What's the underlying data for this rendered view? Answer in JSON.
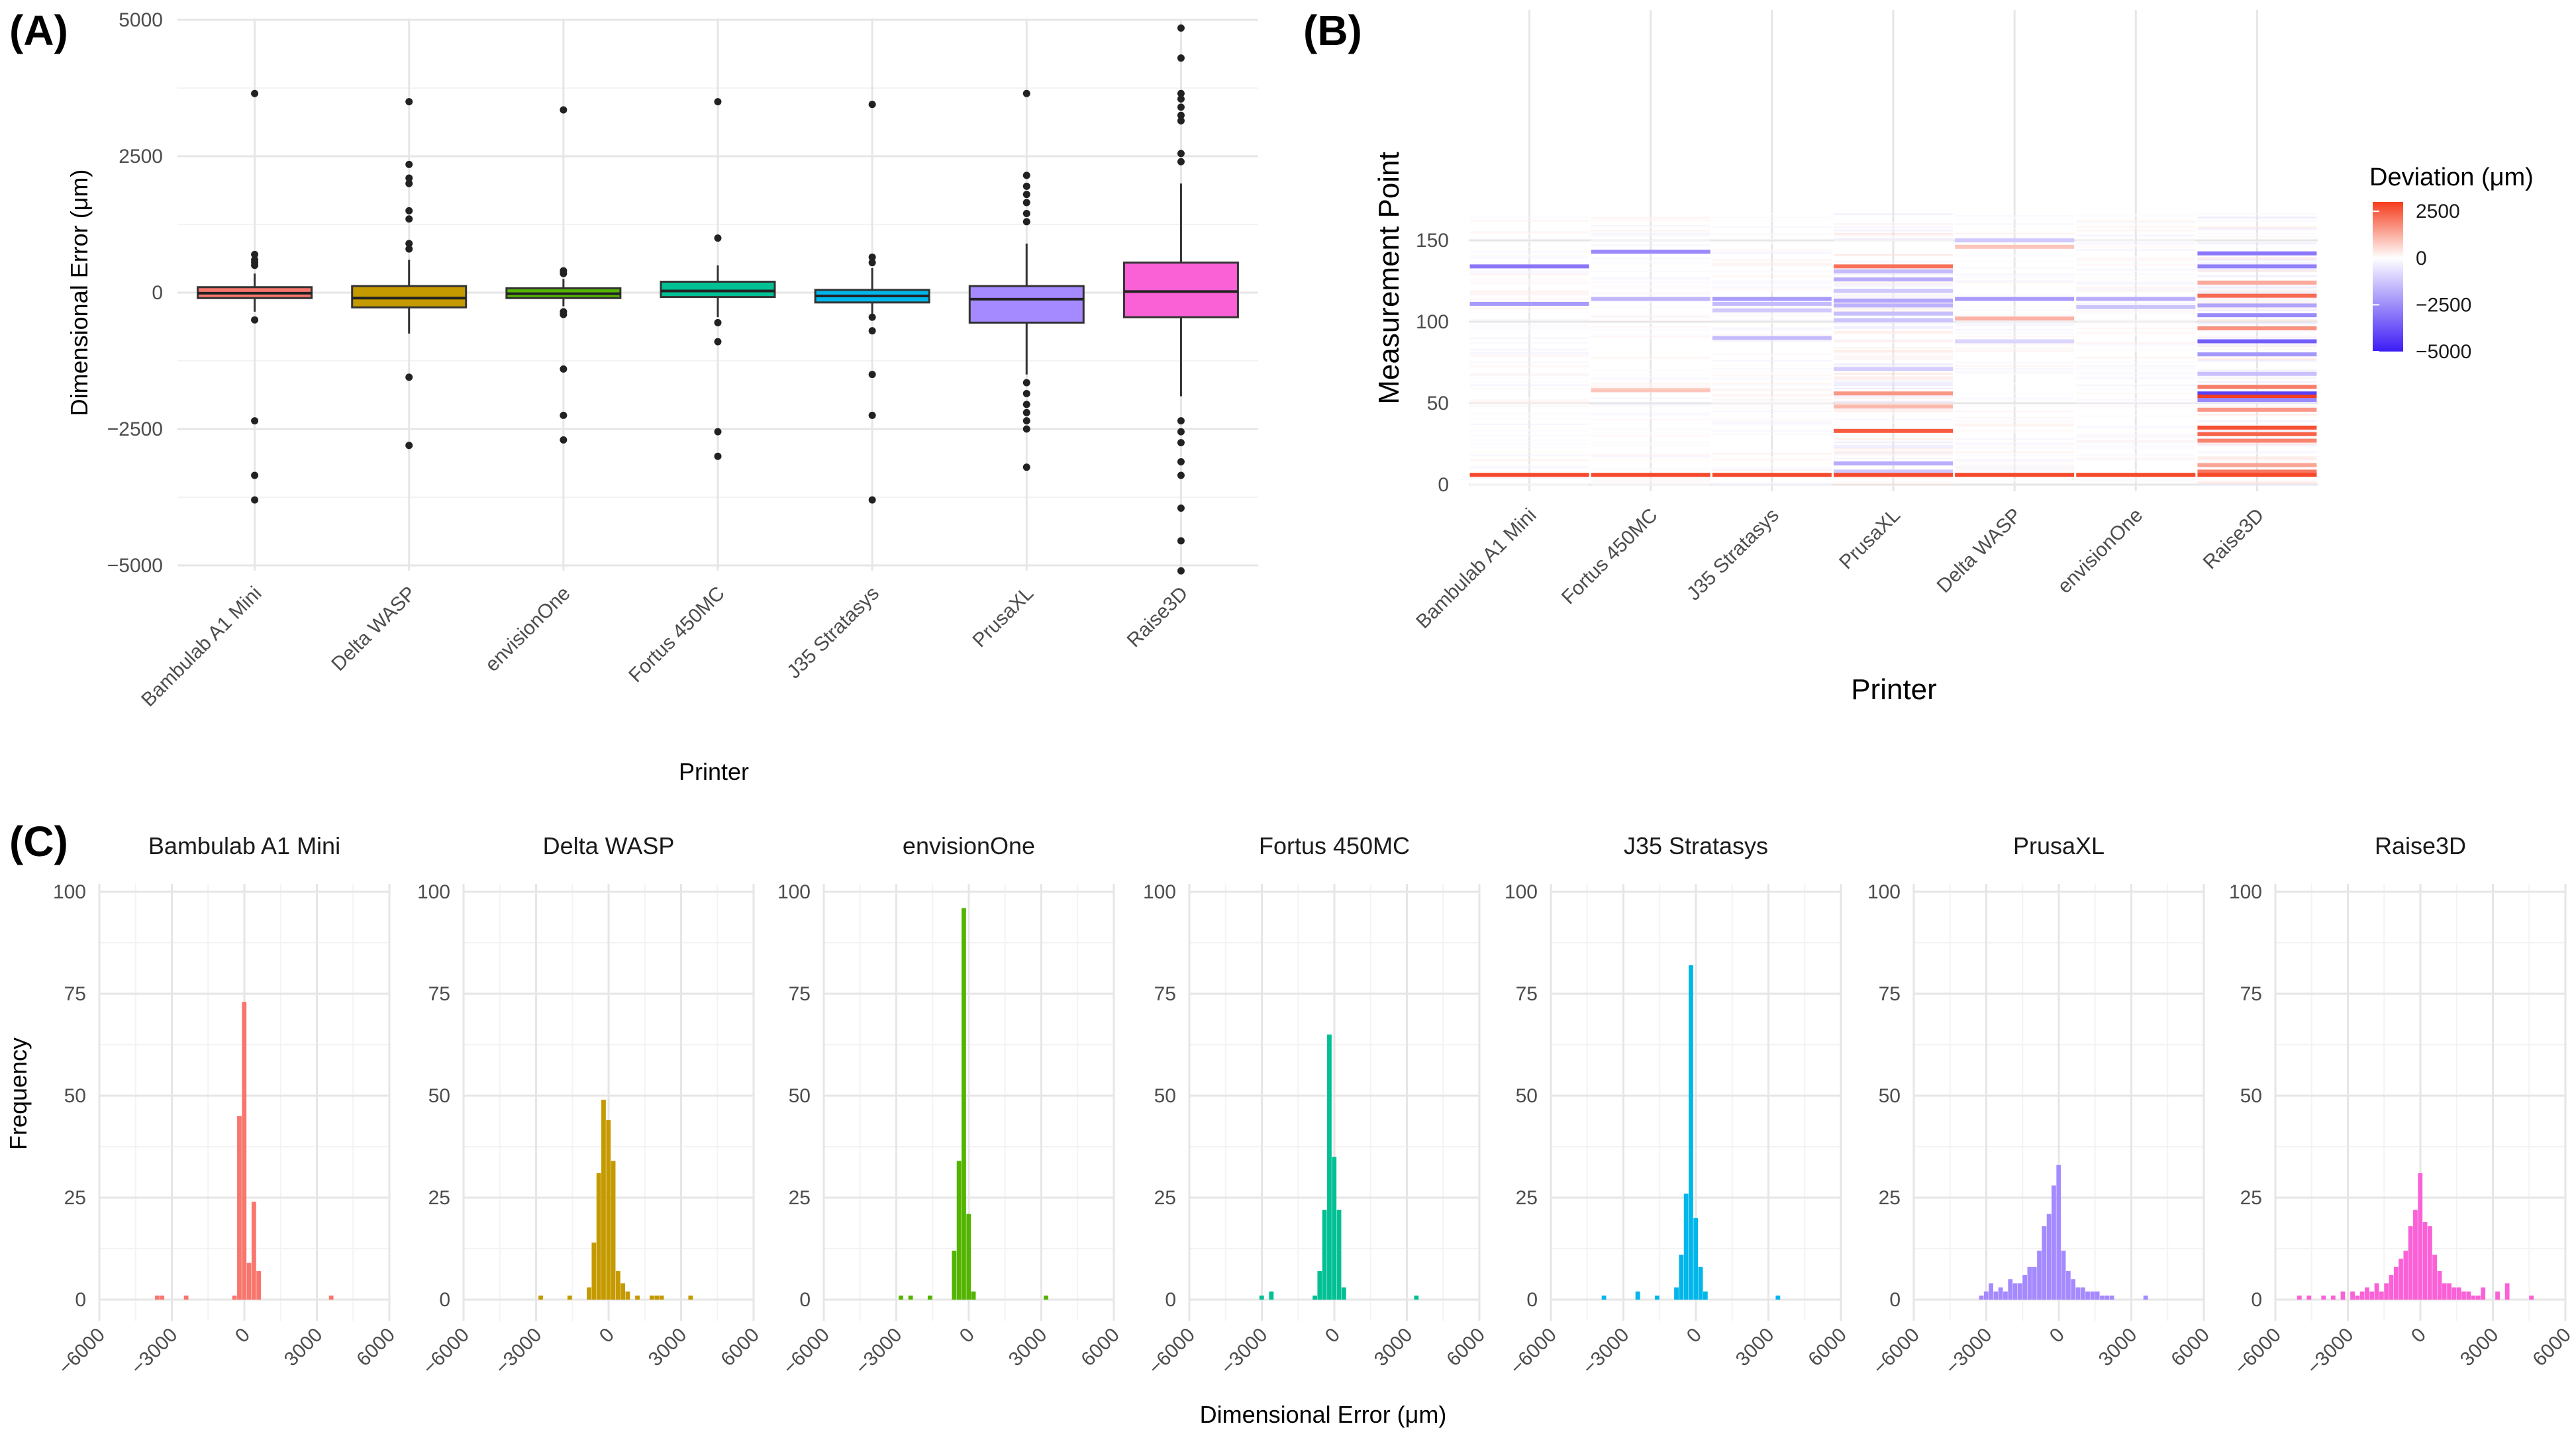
{
  "chart_data": [
    {
      "id": "A",
      "type": "boxplot",
      "panel_label": "(A)",
      "xlabel": "Printer",
      "ylabel": "Dimensional Error (μm)",
      "ylim": [
        -5000,
        5000
      ],
      "yticks": [
        5000,
        2500,
        0,
        -2500,
        -5000
      ],
      "categories": [
        "Bambulab A1 Mini",
        "Delta WASP",
        "envisionOne",
        "Fortus 450MC",
        "J35 Stratasys",
        "PrusaXL",
        "Raise3D"
      ],
      "colors": [
        "#F8766D",
        "#C49A00",
        "#53B400",
        "#00C094",
        "#00B6EB",
        "#A58AFF",
        "#FB61D7"
      ],
      "boxes": [
        {
          "q1": -100,
          "median": -10,
          "q3": 100,
          "whisker_low": -350,
          "whisker_high": 350,
          "outliers": [
            3650,
            700,
            600,
            550,
            500,
            -500,
            -2350,
            -3350,
            -3800
          ]
        },
        {
          "q1": -270,
          "median": -100,
          "q3": 120,
          "whisker_low": -750,
          "whisker_high": 600,
          "outliers": [
            3500,
            2350,
            2100,
            2000,
            1500,
            1350,
            900,
            800,
            -1550,
            -2800
          ]
        },
        {
          "q1": -100,
          "median": -20,
          "q3": 80,
          "whisker_low": -250,
          "whisker_high": 250,
          "outliers": [
            3350,
            400,
            350,
            -350,
            -400,
            -1400,
            -2250,
            -2700
          ]
        },
        {
          "q1": -80,
          "median": 30,
          "q3": 200,
          "whisker_low": -450,
          "whisker_high": 500,
          "outliers": [
            3500,
            1000,
            -550,
            -900,
            -2550,
            -3000
          ]
        },
        {
          "q1": -180,
          "median": -60,
          "q3": 50,
          "whisker_low": -400,
          "whisker_high": 450,
          "outliers": [
            3450,
            650,
            550,
            -450,
            -700,
            -1500,
            -2250,
            -3800
          ]
        },
        {
          "q1": -550,
          "median": -120,
          "q3": 120,
          "whisker_low": -1500,
          "whisker_high": 900,
          "outliers": [
            3650,
            2150,
            1950,
            1800,
            1650,
            1450,
            1300,
            -1650,
            -1850,
            -2050,
            -2200,
            -2350,
            -2500,
            -3200
          ]
        },
        {
          "q1": -450,
          "median": 20,
          "q3": 550,
          "whisker_low": -1900,
          "whisker_high": 2000,
          "outliers": [
            4850,
            4300,
            3650,
            3550,
            3400,
            3250,
            3150,
            2550,
            2400,
            -2350,
            -2550,
            -2750,
            -3100,
            -3350,
            -3950,
            -4550,
            -5100
          ]
        }
      ]
    },
    {
      "id": "B",
      "type": "heatmap",
      "panel_label": "(B)",
      "xlabel": "Printer",
      "ylabel": "Measurement Point",
      "categories": [
        "Bambulab A1 Mini",
        "Fortus 450MC",
        "J35 Stratasys",
        "PrusaXL",
        "Delta WASP",
        "envisionOne",
        "Raise3D"
      ],
      "ylim": [
        0,
        170
      ],
      "yticks": [
        0,
        50,
        100,
        150
      ],
      "legend": {
        "title": "Deviation (μm)",
        "ticks": [
          2500,
          0,
          -2500,
          -5000
        ],
        "range": [
          -5000,
          3000
        ],
        "position": "right"
      },
      "color_scale": {
        "low": "#3C1CF5",
        "mid": "#FFFFFF",
        "high": "#F53C1C"
      },
      "strong_lines": [
        {
          "col": 0,
          "point": 134,
          "value": -3000
        },
        {
          "col": 0,
          "point": 111,
          "value": -2200
        },
        {
          "col": 0,
          "point": 6,
          "value": 2800
        },
        {
          "col": 1,
          "point": 143,
          "value": -2600
        },
        {
          "col": 1,
          "point": 114,
          "value": -1600
        },
        {
          "col": 1,
          "point": 6,
          "value": 2800
        },
        {
          "col": 1,
          "point": 58,
          "value": 900
        },
        {
          "col": 2,
          "point": 114,
          "value": -2200
        },
        {
          "col": 2,
          "point": 111,
          "value": -1500
        },
        {
          "col": 2,
          "point": 107,
          "value": -1200
        },
        {
          "col": 2,
          "point": 90,
          "value": -1500
        },
        {
          "col": 2,
          "point": 6,
          "value": 2800
        },
        {
          "col": 3,
          "point": 134,
          "value": 2200
        },
        {
          "col": 3,
          "point": 131,
          "value": -1500
        },
        {
          "col": 3,
          "point": 126,
          "value": -1800
        },
        {
          "col": 3,
          "point": 119,
          "value": -1200
        },
        {
          "col": 3,
          "point": 113,
          "value": -2000
        },
        {
          "col": 3,
          "point": 110,
          "value": -1700
        },
        {
          "col": 3,
          "point": 105,
          "value": -1400
        },
        {
          "col": 3,
          "point": 101,
          "value": -1300
        },
        {
          "col": 3,
          "point": 71,
          "value": -1100
        },
        {
          "col": 3,
          "point": 56,
          "value": 1600
        },
        {
          "col": 3,
          "point": 48,
          "value": 1100
        },
        {
          "col": 3,
          "point": 33,
          "value": 2500
        },
        {
          "col": 3,
          "point": 13,
          "value": -1800
        },
        {
          "col": 3,
          "point": 8,
          "value": -1200
        },
        {
          "col": 3,
          "point": 6,
          "value": 2800
        },
        {
          "col": 4,
          "point": 150,
          "value": -1200
        },
        {
          "col": 4,
          "point": 146,
          "value": 900
        },
        {
          "col": 4,
          "point": 114,
          "value": -2200
        },
        {
          "col": 4,
          "point": 102,
          "value": 1200
        },
        {
          "col": 4,
          "point": 88,
          "value": -900
        },
        {
          "col": 4,
          "point": 6,
          "value": 2800
        },
        {
          "col": 5,
          "point": 114,
          "value": -1800
        },
        {
          "col": 5,
          "point": 109,
          "value": -1300
        },
        {
          "col": 5,
          "point": 6,
          "value": 2800
        },
        {
          "col": 6,
          "point": 142,
          "value": -3000
        },
        {
          "col": 6,
          "point": 134,
          "value": -2800
        },
        {
          "col": 6,
          "point": 124,
          "value": 1300
        },
        {
          "col": 6,
          "point": 116,
          "value": 2300
        },
        {
          "col": 6,
          "point": 110,
          "value": -2000
        },
        {
          "col": 6,
          "point": 104,
          "value": -2600
        },
        {
          "col": 6,
          "point": 96,
          "value": 1700
        },
        {
          "col": 6,
          "point": 88,
          "value": -3600
        },
        {
          "col": 6,
          "point": 80,
          "value": -2300
        },
        {
          "col": 6,
          "point": 68,
          "value": -1400
        },
        {
          "col": 6,
          "point": 60,
          "value": 2000
        },
        {
          "col": 6,
          "point": 56,
          "value": -4200
        },
        {
          "col": 6,
          "point": 54,
          "value": 3000
        },
        {
          "col": 6,
          "point": 52,
          "value": -2600
        },
        {
          "col": 6,
          "point": 46,
          "value": 1600
        },
        {
          "col": 6,
          "point": 35,
          "value": 2700
        },
        {
          "col": 6,
          "point": 31,
          "value": 2400
        },
        {
          "col": 6,
          "point": 27,
          "value": 1900
        },
        {
          "col": 6,
          "point": 12,
          "value": 1400
        },
        {
          "col": 6,
          "point": 8,
          "value": 2100
        },
        {
          "col": 6,
          "point": 6,
          "value": 2800
        }
      ]
    },
    {
      "id": "C",
      "type": "histogram",
      "panel_label": "(C)",
      "xlabel": "Dimensional Error (μm)",
      "ylabel": "Frequency",
      "xlim": [
        -6000,
        6000
      ],
      "xticks": [
        -6000,
        -3000,
        0,
        3000,
        6000
      ],
      "ylim": [
        0,
        100
      ],
      "yticks": [
        0,
        25,
        50,
        75,
        100
      ],
      "bin_width": 200,
      "facets": [
        {
          "name": "Bambulab A1 Mini",
          "color": "#F8766D",
          "bins": [
            [
              -3600,
              1
            ],
            [
              -3400,
              1
            ],
            [
              -2400,
              1
            ],
            [
              -400,
              1
            ],
            [
              -200,
              45
            ],
            [
              0,
              73
            ],
            [
              200,
              9
            ],
            [
              400,
              24
            ],
            [
              600,
              7
            ],
            [
              3600,
              1
            ]
          ]
        },
        {
          "name": "Delta WASP",
          "color": "#C49A00",
          "bins": [
            [
              -2800,
              1
            ],
            [
              -1600,
              1
            ],
            [
              -800,
              3
            ],
            [
              -600,
              14
            ],
            [
              -400,
              31
            ],
            [
              -200,
              49
            ],
            [
              0,
              44
            ],
            [
              200,
              34
            ],
            [
              400,
              7
            ],
            [
              600,
              4
            ],
            [
              800,
              2
            ],
            [
              1200,
              1
            ],
            [
              1800,
              1
            ],
            [
              2000,
              1
            ],
            [
              2200,
              1
            ],
            [
              3400,
              1
            ]
          ]
        },
        {
          "name": "envisionOne",
          "color": "#53B400",
          "bins": [
            [
              -2800,
              1
            ],
            [
              -2400,
              1
            ],
            [
              -1600,
              1
            ],
            [
              -600,
              12
            ],
            [
              -400,
              34
            ],
            [
              -200,
              96
            ],
            [
              0,
              21
            ],
            [
              200,
              2
            ],
            [
              3200,
              1
            ]
          ]
        },
        {
          "name": "Fortus 450MC",
          "color": "#00C094",
          "bins": [
            [
              -3000,
              1
            ],
            [
              -2600,
              2
            ],
            [
              -800,
              1
            ],
            [
              -600,
              7
            ],
            [
              -400,
              22
            ],
            [
              -200,
              65
            ],
            [
              0,
              35
            ],
            [
              200,
              22
            ],
            [
              400,
              3
            ],
            [
              3400,
              1
            ]
          ]
        },
        {
          "name": "J35 Stratasys",
          "color": "#00B6EB",
          "bins": [
            [
              -3800,
              1
            ],
            [
              -2400,
              2
            ],
            [
              -1600,
              1
            ],
            [
              -800,
              3
            ],
            [
              -600,
              11
            ],
            [
              -400,
              26
            ],
            [
              -200,
              82
            ],
            [
              0,
              20
            ],
            [
              200,
              8
            ],
            [
              400,
              2
            ],
            [
              3400,
              1
            ]
          ]
        },
        {
          "name": "PrusaXL",
          "color": "#A58AFF",
          "bins": [
            [
              -3200,
              1
            ],
            [
              -3000,
              2
            ],
            [
              -2800,
              4
            ],
            [
              -2600,
              2
            ],
            [
              -2400,
              3
            ],
            [
              -2200,
              2
            ],
            [
              -2000,
              5
            ],
            [
              -1800,
              4
            ],
            [
              -1600,
              4
            ],
            [
              -1400,
              6
            ],
            [
              -1200,
              8
            ],
            [
              -1000,
              8
            ],
            [
              -800,
              12
            ],
            [
              -600,
              18
            ],
            [
              -400,
              21
            ],
            [
              -200,
              28
            ],
            [
              0,
              33
            ],
            [
              200,
              12
            ],
            [
              400,
              7
            ],
            [
              600,
              5
            ],
            [
              800,
              3
            ],
            [
              1000,
              3
            ],
            [
              1200,
              2
            ],
            [
              1400,
              2
            ],
            [
              1600,
              2
            ],
            [
              1800,
              1
            ],
            [
              2000,
              1
            ],
            [
              2200,
              1
            ],
            [
              3600,
              1
            ]
          ]
        },
        {
          "name": "Raise3D",
          "color": "#FB61D7",
          "bins": [
            [
              -5000,
              1
            ],
            [
              -4600,
              1
            ],
            [
              -4000,
              1
            ],
            [
              -3600,
              1
            ],
            [
              -3200,
              2
            ],
            [
              -2800,
              2
            ],
            [
              -2600,
              1
            ],
            [
              -2400,
              2
            ],
            [
              -2200,
              3
            ],
            [
              -2000,
              2
            ],
            [
              -1800,
              4
            ],
            [
              -1600,
              2
            ],
            [
              -1400,
              4
            ],
            [
              -1200,
              6
            ],
            [
              -1000,
              8
            ],
            [
              -800,
              10
            ],
            [
              -600,
              12
            ],
            [
              -400,
              18
            ],
            [
              -200,
              22
            ],
            [
              0,
              31
            ],
            [
              200,
              19
            ],
            [
              400,
              18
            ],
            [
              600,
              11
            ],
            [
              800,
              7
            ],
            [
              1000,
              4
            ],
            [
              1200,
              4
            ],
            [
              1400,
              3
            ],
            [
              1600,
              3
            ],
            [
              1800,
              2
            ],
            [
              2000,
              2
            ],
            [
              2200,
              1
            ],
            [
              2400,
              1
            ],
            [
              2600,
              3
            ],
            [
              3200,
              2
            ],
            [
              3600,
              4
            ],
            [
              4600,
              1
            ]
          ]
        }
      ]
    }
  ]
}
